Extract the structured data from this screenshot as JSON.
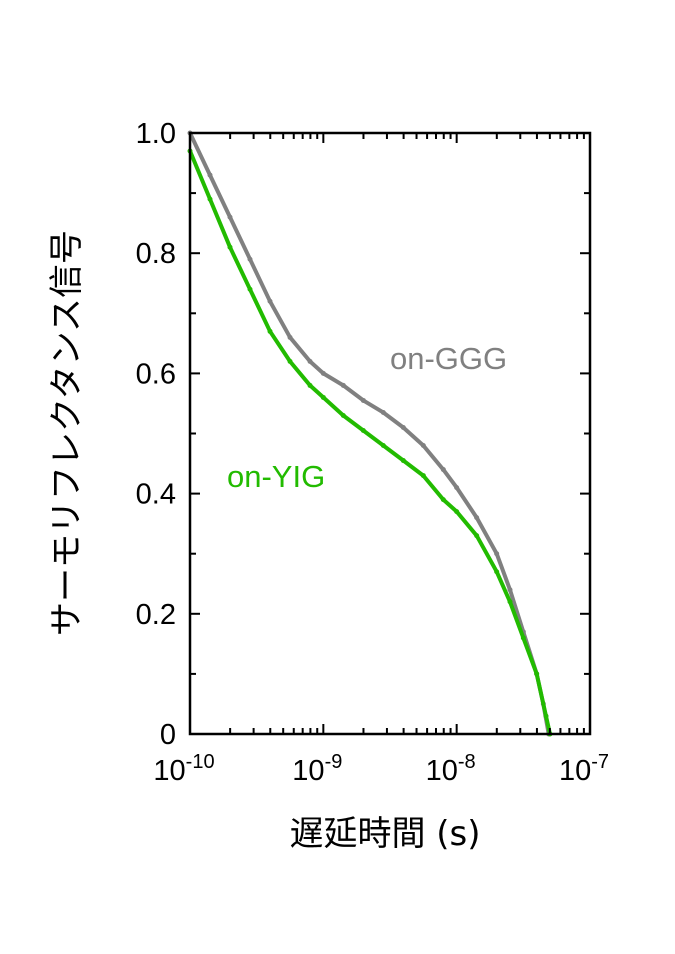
{
  "chart_data": {
    "type": "line",
    "title": "",
    "xlabel": "遅延時間 (s)",
    "ylabel": "サーモリフレクタンス信号",
    "xscale": "log",
    "xlim": [
      1e-10,
      1e-07
    ],
    "ylim": [
      0,
      1.0
    ],
    "grid": false,
    "x_ticks": [
      {
        "base": "10",
        "exp": "-10",
        "value": 1e-10
      },
      {
        "base": "10",
        "exp": "-9",
        "value": 1e-09
      },
      {
        "base": "10",
        "exp": "-8",
        "value": 1e-08
      },
      {
        "base": "10",
        "exp": "-7",
        "value": 1e-07
      }
    ],
    "y_ticks": [
      {
        "label": "0",
        "value": 0
      },
      {
        "label": "0.2",
        "value": 0.2
      },
      {
        "label": "0.4",
        "value": 0.4
      },
      {
        "label": "0.6",
        "value": 0.6
      },
      {
        "label": "0.8",
        "value": 0.8
      },
      {
        "label": "1.0",
        "value": 1.0
      }
    ],
    "series": [
      {
        "name": "on-GGG",
        "color": "#808080",
        "log10_x": [
          -10,
          -9.85,
          -9.7,
          -9.55,
          -9.4,
          -9.25,
          -9.1,
          -9.0,
          -8.85,
          -8.7,
          -8.55,
          -8.4,
          -8.25,
          -8.1,
          -8.0,
          -7.85,
          -7.7,
          -7.6,
          -7.5,
          -7.4,
          -7.35,
          -7.31
        ],
        "y": [
          1.0,
          0.93,
          0.86,
          0.79,
          0.72,
          0.66,
          0.62,
          0.6,
          0.58,
          0.555,
          0.535,
          0.51,
          0.48,
          0.44,
          0.41,
          0.36,
          0.3,
          0.24,
          0.17,
          0.1,
          0.05,
          0.0
        ]
      },
      {
        "name": "on-YIG",
        "color": "#22bb00",
        "log10_x": [
          -10,
          -9.85,
          -9.7,
          -9.55,
          -9.4,
          -9.25,
          -9.1,
          -9.0,
          -8.85,
          -8.7,
          -8.55,
          -8.4,
          -8.25,
          -8.1,
          -8.0,
          -7.85,
          -7.7,
          -7.6,
          -7.5,
          -7.4,
          -7.33,
          -7.3
        ],
        "y": [
          0.97,
          0.89,
          0.81,
          0.74,
          0.67,
          0.62,
          0.58,
          0.56,
          0.53,
          0.505,
          0.48,
          0.455,
          0.43,
          0.39,
          0.37,
          0.33,
          0.27,
          0.22,
          0.16,
          0.1,
          0.03,
          0.0
        ]
      }
    ]
  }
}
